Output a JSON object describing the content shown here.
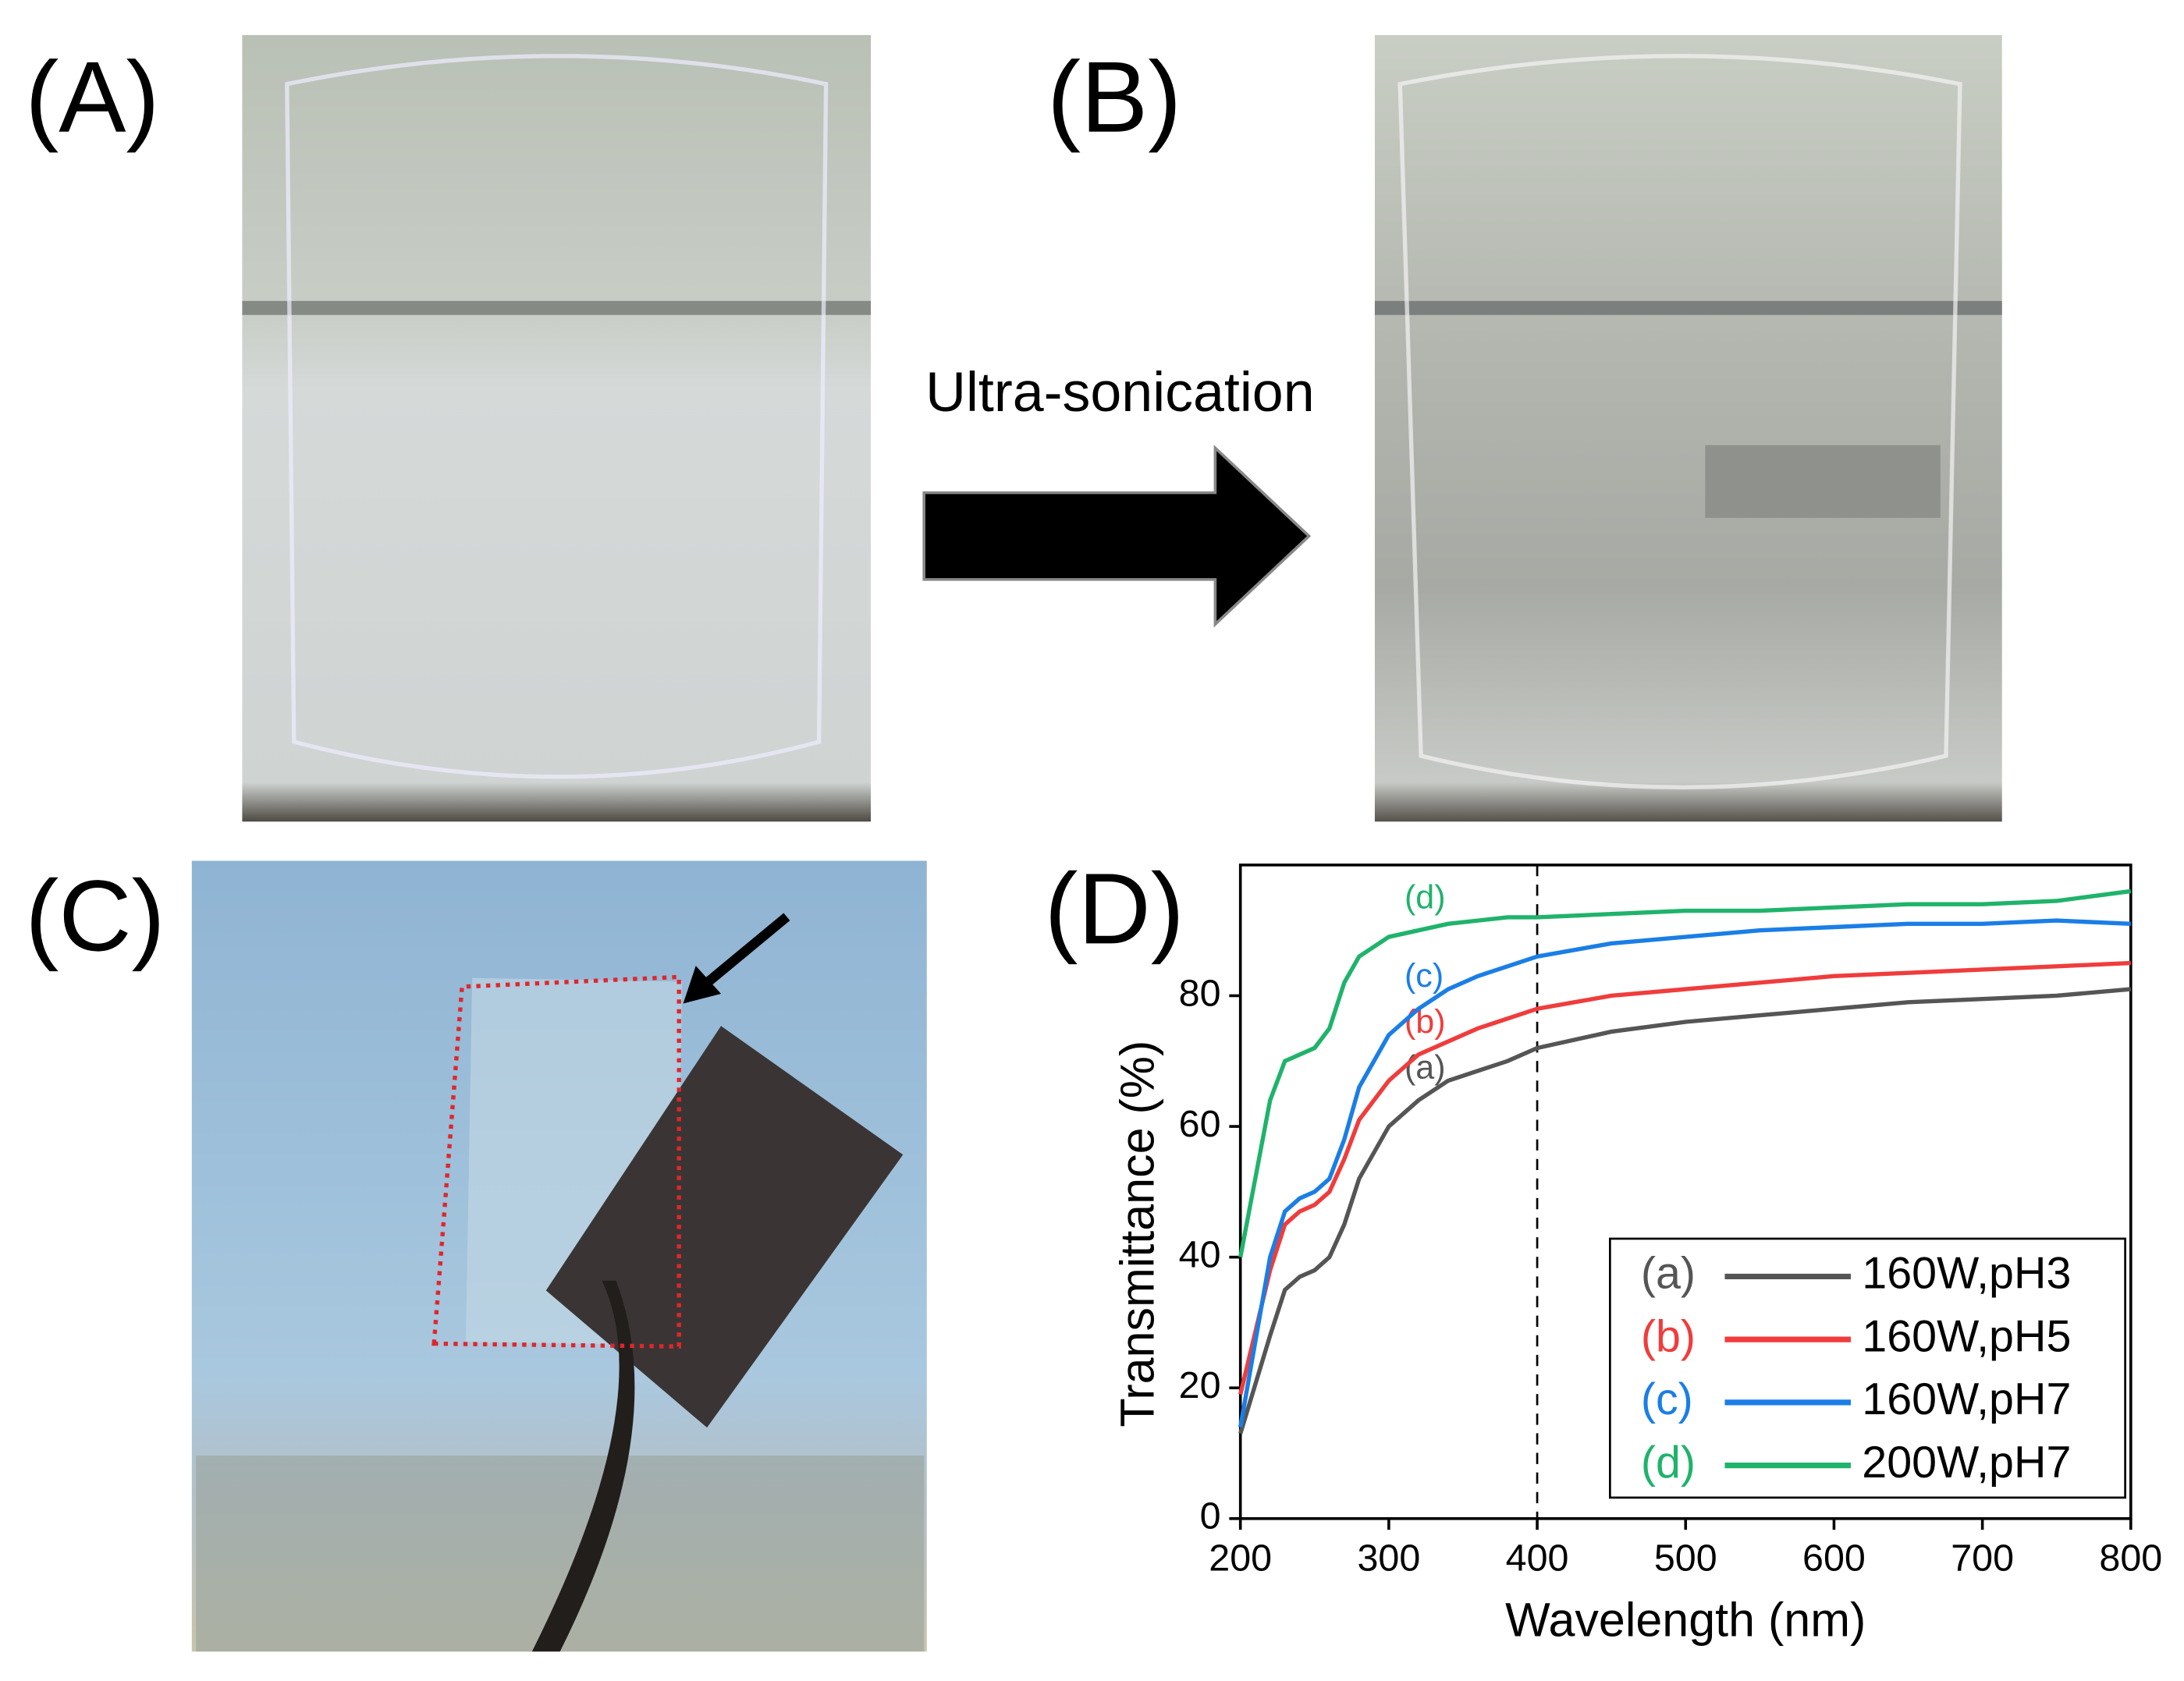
{
  "panels": {
    "a": "(A)",
    "b": "(B)",
    "c": "(C)",
    "d": "(D)"
  },
  "arrow_label": "Ultra-sonication",
  "chart_data": {
    "type": "line",
    "xlabel": "Wavelength (nm)",
    "ylabel": "Transmittance (%)",
    "x": [
      200,
      220,
      230,
      240,
      250,
      260,
      270,
      280,
      300,
      320,
      340,
      360,
      380,
      400,
      450,
      500,
      550,
      600,
      650,
      700,
      750,
      800
    ],
    "series": [
      {
        "label": "(a)",
        "name": "160W,pH3",
        "color": "#555555",
        "values": [
          13,
          28,
          35,
          37,
          38,
          40,
          45,
          52,
          60,
          64,
          67,
          68.5,
          70,
          72,
          74.5,
          76,
          77,
          78,
          79,
          79.5,
          80,
          81
        ]
      },
      {
        "label": "(b)",
        "name": "160W,pH5",
        "color": "#f03c3c",
        "values": [
          19,
          38,
          45,
          47,
          48,
          50,
          55,
          61,
          67,
          71,
          73,
          75,
          76.5,
          78,
          80,
          81,
          82,
          83,
          83.5,
          84,
          84.5,
          85
        ]
      },
      {
        "label": "(c)",
        "name": "160W,pH7",
        "color": "#1a7ee6",
        "values": [
          14,
          40,
          47,
          49,
          50,
          52,
          58,
          66,
          74,
          78,
          81,
          83,
          84.5,
          86,
          88,
          89,
          90,
          90.5,
          91,
          91,
          91.5,
          91
        ]
      },
      {
        "label": "(d)",
        "name": "200W,pH7",
        "color": "#1fb36b",
        "values": [
          40,
          64,
          70,
          71,
          72,
          75,
          82,
          86,
          89,
          90,
          91,
          91.5,
          92,
          92,
          92.5,
          93,
          93,
          93.5,
          94,
          94,
          94.5,
          96
        ]
      }
    ],
    "xlim": [
      200,
      800
    ],
    "ylim": [
      0,
      100
    ],
    "xticks": [
      200,
      300,
      400,
      500,
      600,
      700,
      800
    ],
    "yticks": [
      0,
      20,
      40,
      60,
      80
    ],
    "vline": 400
  }
}
